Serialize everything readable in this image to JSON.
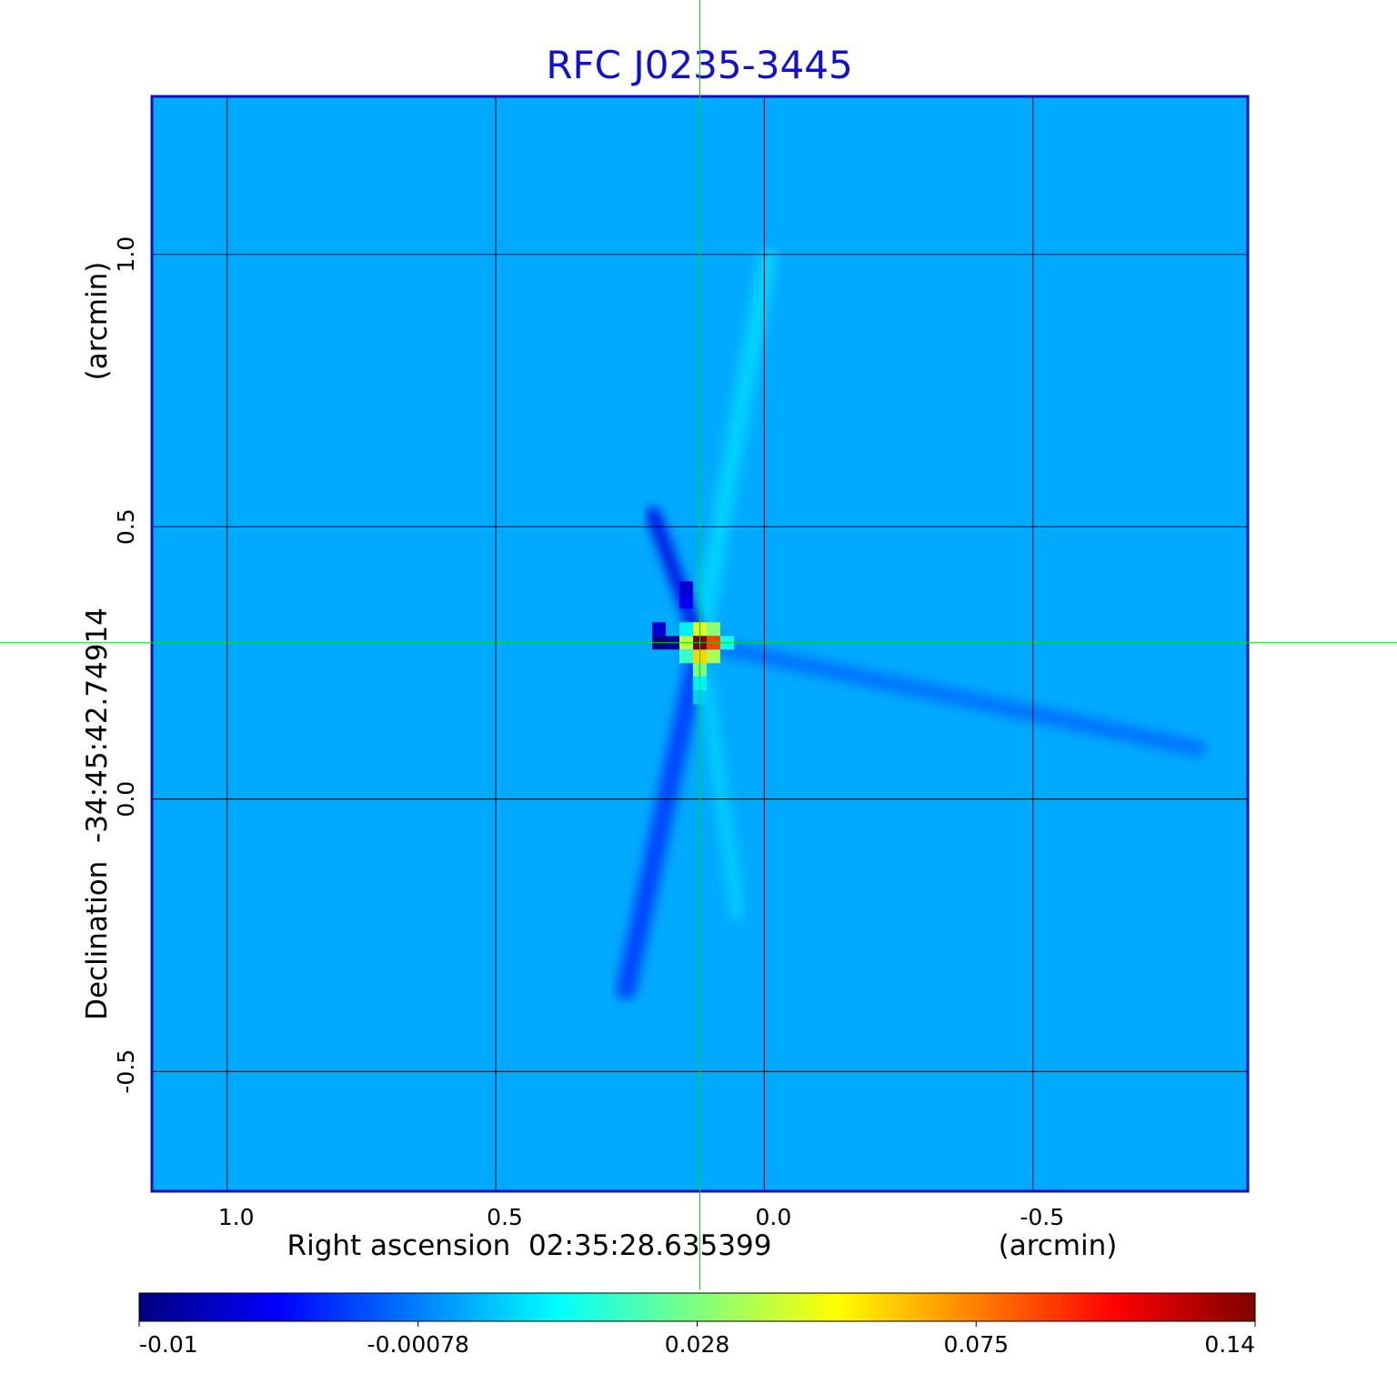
{
  "chart_data": {
    "type": "heatmap",
    "title": "RFC J0235-3445",
    "xlabel": "Right ascension  02:35:28.635399",
    "xunit": "(arcmin)",
    "ylabel": "Declination  -34:45:42.74914",
    "yunit": "(arcmin)",
    "xlim": [
      1.14,
      -0.9
    ],
    "ylim": [
      -0.72,
      1.29
    ],
    "x_ticks": [
      1.0,
      0.5,
      0.0,
      -0.5
    ],
    "x_tick_labels": [
      "1.0",
      "0.5",
      "0.0",
      "-0.5"
    ],
    "y_ticks": [
      1.0,
      0.5,
      0.0,
      -0.5
    ],
    "y_tick_labels": [
      "1.0",
      "0.5",
      "0.0",
      "-0.5"
    ],
    "grid": true,
    "crosshair": {
      "x": 0.12,
      "y": 0.287,
      "color": "#00e000"
    },
    "peak": {
      "x": 0.12,
      "y": 0.287,
      "value": 0.14
    },
    "background_level": 0.004,
    "colorbar": {
      "position": "bottom",
      "ticks": [
        -0.01,
        -0.00078,
        0.028,
        0.075,
        0.14
      ],
      "tick_labels": [
        "-0.01",
        "-0.00078",
        "0.028",
        "0.075",
        "0.14"
      ]
    },
    "colormap": [
      "#00007f",
      "#0000ff",
      "#007fff",
      "#00ffff",
      "#7fff7f",
      "#ffff00",
      "#ff7f00",
      "#ff0000",
      "#7f0000"
    ],
    "colors": {
      "title": "#1010d0",
      "frame": "#1010c0",
      "grid": "#000000"
    }
  }
}
